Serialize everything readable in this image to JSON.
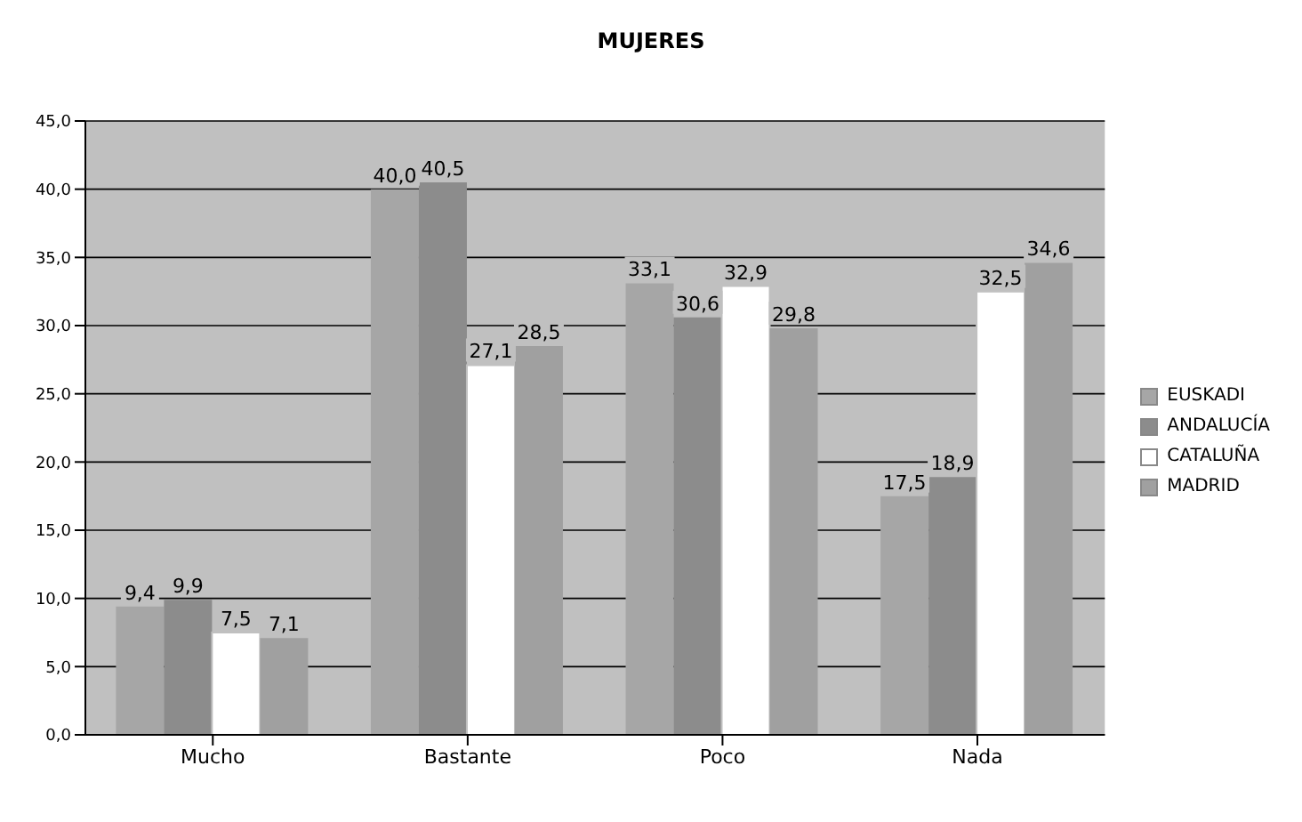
{
  "chart_data": {
    "type": "bar",
    "title": "MUJERES",
    "categories": [
      "Mucho",
      "Bastante",
      "Poco",
      "Nada"
    ],
    "series": [
      {
        "name": "EUSKADI",
        "color": "#a6a6a6",
        "values": [
          9.4,
          40.0,
          33.1,
          17.5
        ],
        "value_labels": [
          "9,4",
          "40,0",
          "33,1",
          "17,5"
        ]
      },
      {
        "name": "ANDALUCÍA",
        "color": "#8c8c8c",
        "values": [
          9.9,
          40.5,
          30.6,
          18.9
        ],
        "value_labels": [
          "9,9",
          "40,5",
          "30,6",
          "18,9"
        ]
      },
      {
        "name": "CATALUÑA",
        "color": "#ffffff",
        "values": [
          7.5,
          27.1,
          32.9,
          32.5
        ],
        "value_labels": [
          "7,5",
          "27,1",
          "32,9",
          "32,5"
        ]
      },
      {
        "name": "MADRID",
        "color": "#a0a0a0",
        "values": [
          7.1,
          28.5,
          29.8,
          34.6
        ],
        "value_labels": [
          "7,1",
          "28,5",
          "29,8",
          "34,6"
        ]
      }
    ],
    "ylim": [
      0,
      45
    ],
    "yticks": [
      {
        "value": 0,
        "label": "0,0"
      },
      {
        "value": 5,
        "label": "5,0"
      },
      {
        "value": 10,
        "label": "10,0"
      },
      {
        "value": 15,
        "label": "15,0"
      },
      {
        "value": 20,
        "label": "20,0"
      },
      {
        "value": 25,
        "label": "25,0"
      },
      {
        "value": 30,
        "label": "30,0"
      },
      {
        "value": 35,
        "label": "35,0"
      },
      {
        "value": 40,
        "label": "40,0"
      },
      {
        "value": 45,
        "label": "45,0"
      }
    ],
    "grid": "y",
    "legend": "right"
  }
}
